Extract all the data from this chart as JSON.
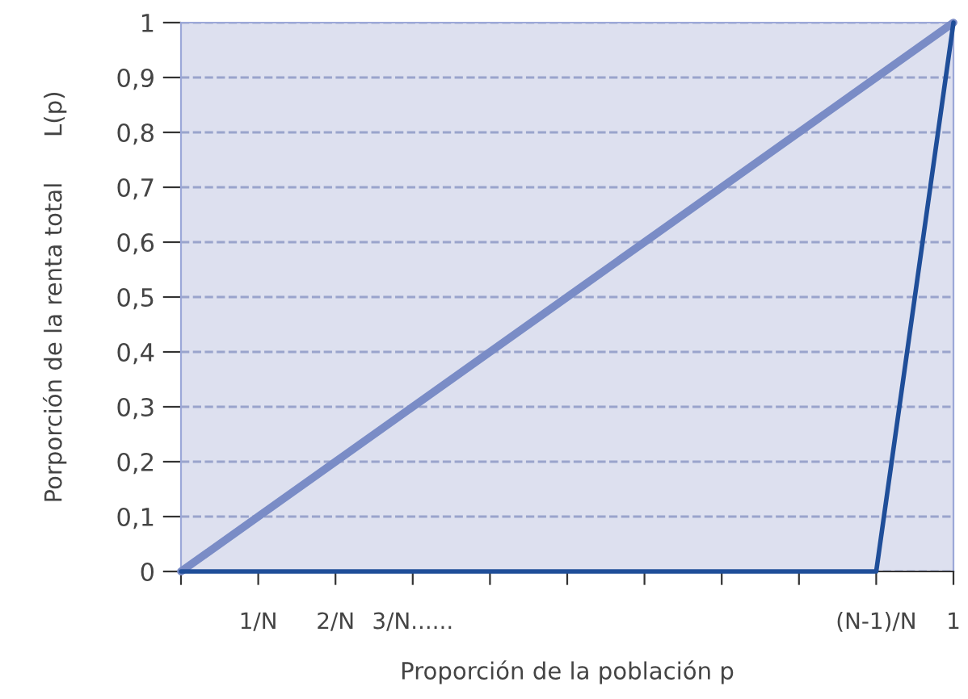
{
  "chart_data": {
    "type": "line",
    "xlabel": "Proporción de la población p",
    "ylabel": "Porporción de la renta total      L(p)",
    "categories": [
      null,
      "1/N",
      "2/N",
      "3/N......",
      null,
      null,
      null,
      null,
      null,
      "(N-1)/N",
      "1"
    ],
    "series": [
      {
        "color": "#7a8cc6",
        "values": [
          0,
          0.1,
          0.2,
          0.3,
          0.4,
          0.5,
          0.6,
          0.7,
          0.8,
          0.9,
          1
        ]
      },
      {
        "color": "#1f4e99",
        "values": [
          0,
          0,
          0,
          0,
          0,
          0,
          0,
          0,
          0,
          0,
          1
        ]
      }
    ],
    "ylim": [
      0,
      1
    ],
    "yticks": [
      0,
      {
        "value": 0.1,
        "label": "0,1"
      },
      {
        "value": 0.2,
        "label": "0,2"
      },
      {
        "value": 0.3,
        "label": "0,3"
      },
      {
        "value": 0.4,
        "label": "0,4"
      },
      {
        "value": 0.5,
        "label": "0,5"
      },
      {
        "value": 0.6,
        "label": "0,6"
      },
      {
        "value": 0.7,
        "label": "0,7"
      },
      {
        "value": 0.8,
        "label": "0,8"
      },
      {
        "value": 0.9,
        "label": "0,9"
      },
      1
    ],
    "grid": "y",
    "legend": false,
    "marker": "none",
    "line_style": "solid"
  }
}
